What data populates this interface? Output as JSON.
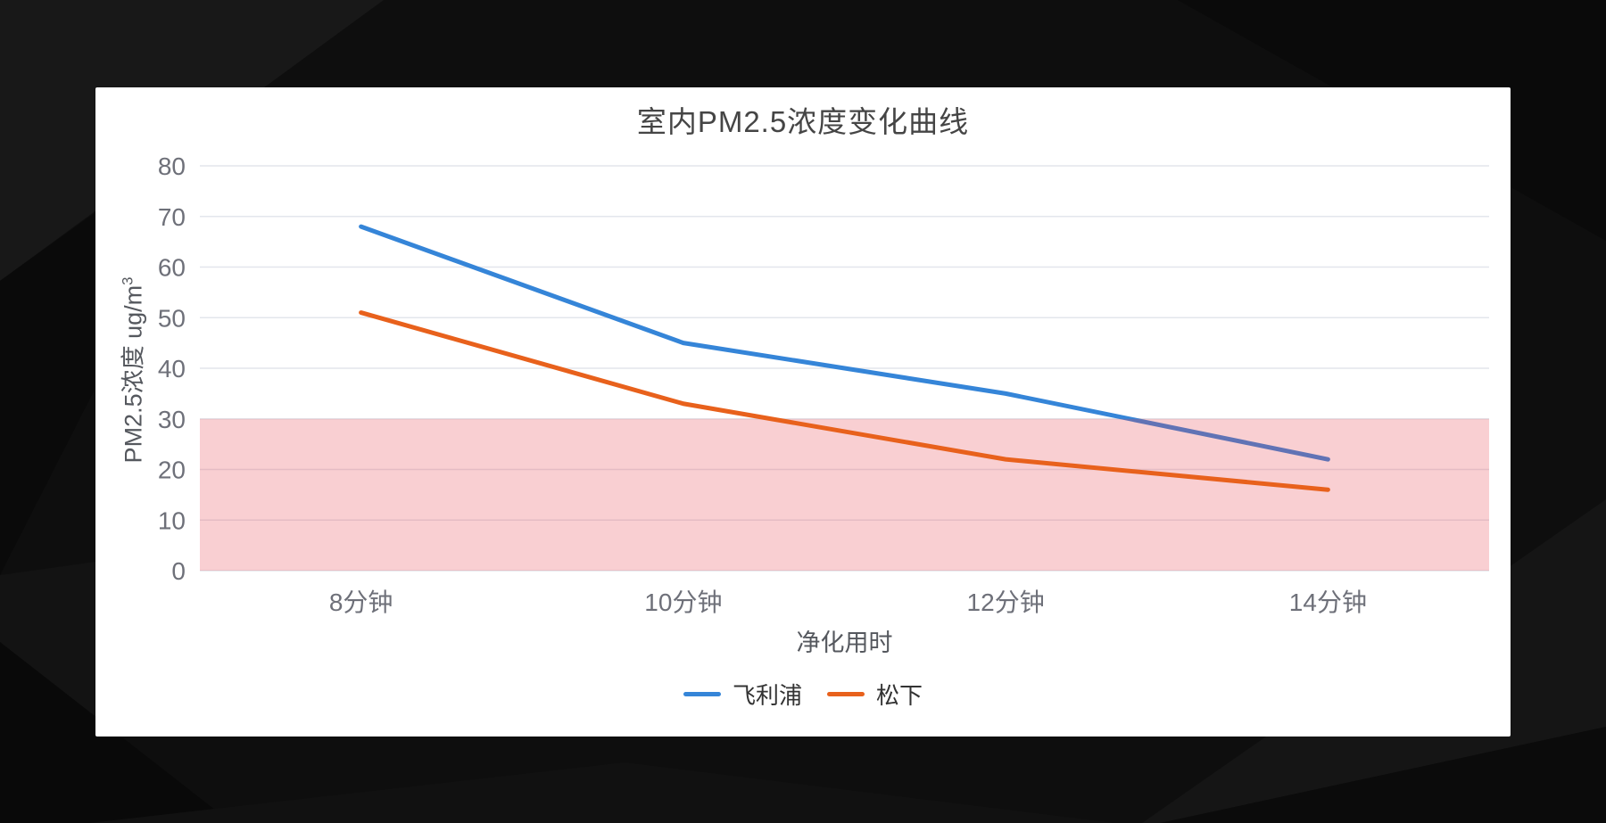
{
  "page": {
    "background_color": "#0f0f0f"
  },
  "card": {
    "background_color": "#ffffff"
  },
  "chart_data": {
    "type": "line",
    "title": "室内PM2.5浓度变化曲线",
    "categories": [
      "8分钟",
      "10分钟",
      "12分钟",
      "14分钟"
    ],
    "series": [
      {
        "name": "飞利浦",
        "color": "#3585D8",
        "values": [
          68,
          45,
          35,
          22
        ]
      },
      {
        "name": "松下",
        "color": "#E8611C",
        "values": [
          51,
          33,
          22,
          16
        ]
      }
    ],
    "xlabel": "净化用时",
    "ylabel": "PM2.5浓度 ug/m³",
    "ylabel_main": "PM2.5浓度 ug/m",
    "ylabel_sup": "3",
    "ylim": [
      0,
      80
    ],
    "ytick_step": 10,
    "grid": true,
    "legend_position": "bottom",
    "band": {
      "from": 0,
      "to": 30,
      "fill": "rgba(230,64,76,0.25)"
    },
    "colors": {
      "grid_line": "#E3E6EC",
      "tick_label": "#6E7079",
      "axis_name": "#55585E",
      "title": "#454545",
      "legend_text": "#333333"
    }
  }
}
